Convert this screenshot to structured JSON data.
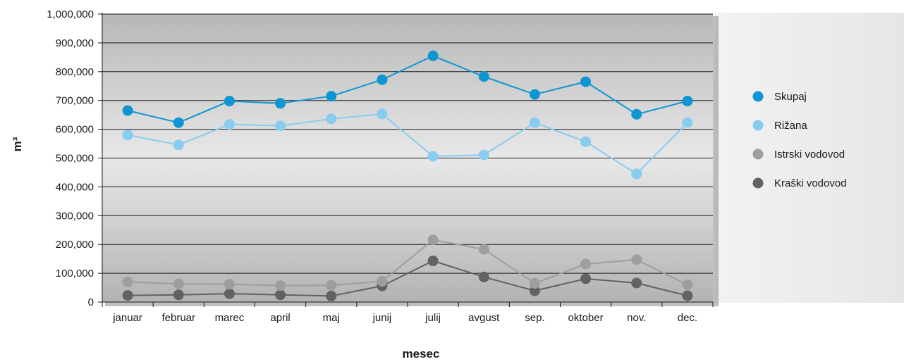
{
  "chart_data": {
    "type": "line",
    "xlabel": "mesec",
    "ylabel": "m³",
    "categories": [
      "januar",
      "februar",
      "marec",
      "april",
      "maj",
      "junij",
      "julij",
      "avgust",
      "sep.",
      "oktober",
      "nov.",
      "dec."
    ],
    "ylim": [
      0,
      1000000
    ],
    "yticks": [
      0,
      100000,
      200000,
      300000,
      400000,
      500000,
      600000,
      700000,
      800000,
      900000,
      1000000
    ],
    "ytick_labels": [
      "0",
      "100,000",
      "200,000",
      "300,000",
      "400,000",
      "500,000",
      "600,000",
      "700,000",
      "800,000",
      "900,000",
      "1,000,000"
    ],
    "grid": true,
    "legend_position": "right",
    "series": [
      {
        "name": "Skupaj",
        "color": "#0f96d2",
        "values": [
          665000,
          623000,
          698000,
          690000,
          715000,
          772000,
          855000,
          783000,
          721000,
          765000,
          652000,
          698000
        ]
      },
      {
        "name": "Rižana",
        "color": "#86cdef",
        "values": [
          580000,
          546000,
          617000,
          612000,
          636000,
          653000,
          506000,
          511000,
          623000,
          557000,
          445000,
          623000
        ]
      },
      {
        "name": "Istrski vodovod",
        "color": "#9e9e9e",
        "values": [
          70000,
          63000,
          62000,
          57000,
          58000,
          72000,
          216000,
          183000,
          65000,
          132000,
          147000,
          60000
        ]
      },
      {
        "name": "Kraški vodovod",
        "color": "#626262",
        "values": [
          23000,
          25000,
          29000,
          25000,
          21000,
          56000,
          143000,
          87000,
          39000,
          81000,
          66000,
          22000
        ]
      }
    ]
  }
}
